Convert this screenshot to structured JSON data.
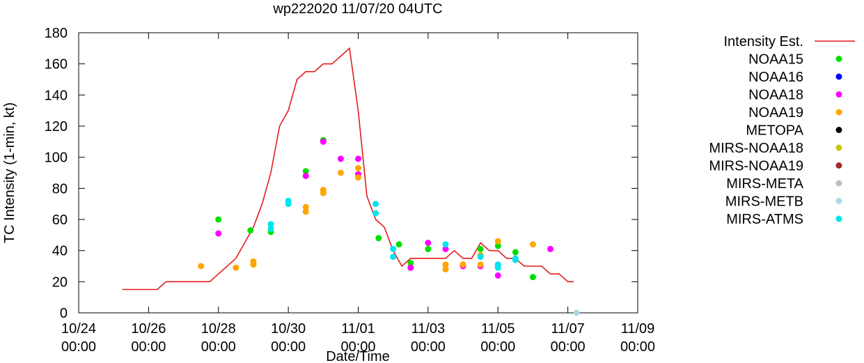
{
  "chart_data": {
    "type": "scatter",
    "title": "wp222020 11/07/20 04UTC",
    "xlabel": "Date/Time",
    "ylabel": "TC Intensity (1-min, kt)",
    "xlim": [
      "2020-10-24T00:00",
      "2020-11-09T00:00"
    ],
    "ylim": [
      0,
      180
    ],
    "yticks": [
      0,
      20,
      40,
      60,
      80,
      100,
      120,
      140,
      160,
      180
    ],
    "xticks": [
      {
        "x": "2020-10-24T00:00",
        "label1": "10/24",
        "label2": "00:00"
      },
      {
        "x": "2020-10-26T00:00",
        "label1": "10/26",
        "label2": "00:00"
      },
      {
        "x": "2020-10-28T00:00",
        "label1": "10/28",
        "label2": "00:00"
      },
      {
        "x": "2020-10-30T00:00",
        "label1": "10/30",
        "label2": "00:00"
      },
      {
        "x": "2020-11-01T00:00",
        "label1": "11/01",
        "label2": "00:00"
      },
      {
        "x": "2020-11-03T00:00",
        "label1": "11/03",
        "label2": "00:00"
      },
      {
        "x": "2020-11-05T00:00",
        "label1": "11/05",
        "label2": "00:00"
      },
      {
        "x": "2020-11-07T00:00",
        "label1": "11/07",
        "label2": "00:00"
      },
      {
        "x": "2020-11-09T00:00",
        "label1": "11/09",
        "label2": "00:00"
      }
    ],
    "grid": false,
    "legend_placement": "right",
    "line": {
      "name": "Intensity Est.",
      "color": "#e41a1c",
      "points": [
        [
          "2020-10-25T06:00",
          15
        ],
        [
          "2020-10-25T12:00",
          15
        ],
        [
          "2020-10-26T00:00",
          15
        ],
        [
          "2020-10-26T06:00",
          15
        ],
        [
          "2020-10-26T12:00",
          20
        ],
        [
          "2020-10-27T00:00",
          20
        ],
        [
          "2020-10-27T12:00",
          20
        ],
        [
          "2020-10-27T18:00",
          20
        ],
        [
          "2020-10-28T00:00",
          25
        ],
        [
          "2020-10-28T12:00",
          35
        ],
        [
          "2020-10-28T18:00",
          45
        ],
        [
          "2020-10-29T00:00",
          55
        ],
        [
          "2020-10-29T06:00",
          70
        ],
        [
          "2020-10-29T12:00",
          90
        ],
        [
          "2020-10-29T18:00",
          120
        ],
        [
          "2020-10-30T00:00",
          130
        ],
        [
          "2020-10-30T06:00",
          150
        ],
        [
          "2020-10-30T12:00",
          155
        ],
        [
          "2020-10-30T18:00",
          155
        ],
        [
          "2020-10-31T00:00",
          160
        ],
        [
          "2020-10-31T06:00",
          160
        ],
        [
          "2020-10-31T12:00",
          165
        ],
        [
          "2020-10-31T18:00",
          170
        ],
        [
          "2020-11-01T00:00",
          130
        ],
        [
          "2020-11-01T06:00",
          75
        ],
        [
          "2020-11-01T12:00",
          60
        ],
        [
          "2020-11-01T18:00",
          55
        ],
        [
          "2020-11-02T00:00",
          40
        ],
        [
          "2020-11-02T06:00",
          30
        ],
        [
          "2020-11-02T12:00",
          35
        ],
        [
          "2020-11-03T00:00",
          35
        ],
        [
          "2020-11-03T12:00",
          35
        ],
        [
          "2020-11-03T18:00",
          40
        ],
        [
          "2020-11-04T00:00",
          35
        ],
        [
          "2020-11-04T06:00",
          35
        ],
        [
          "2020-11-04T12:00",
          45
        ],
        [
          "2020-11-04T18:00",
          40
        ],
        [
          "2020-11-05T00:00",
          40
        ],
        [
          "2020-11-05T06:00",
          35
        ],
        [
          "2020-11-05T12:00",
          35
        ],
        [
          "2020-11-05T18:00",
          30
        ],
        [
          "2020-11-06T00:00",
          30
        ],
        [
          "2020-11-06T06:00",
          30
        ],
        [
          "2020-11-06T12:00",
          25
        ],
        [
          "2020-11-06T18:00",
          25
        ],
        [
          "2020-11-07T00:00",
          20
        ],
        [
          "2020-11-07T04:00",
          20
        ]
      ]
    },
    "series": [
      {
        "name": "NOAA15",
        "color": "#00e000",
        "points": [
          [
            "2020-10-28T00:00",
            60
          ],
          [
            "2020-10-28T22:00",
            53
          ],
          [
            "2020-10-29T12:00",
            52
          ],
          [
            "2020-10-30T12:00",
            91
          ],
          [
            "2020-10-31T00:00",
            111
          ],
          [
            "2020-11-01T14:00",
            48
          ],
          [
            "2020-11-02T04:00",
            44
          ],
          [
            "2020-11-02T12:00",
            32
          ],
          [
            "2020-11-03T00:00",
            41
          ],
          [
            "2020-11-04T00:00",
            31
          ],
          [
            "2020-11-04T12:00",
            41
          ],
          [
            "2020-11-05T00:00",
            43
          ],
          [
            "2020-11-05T12:00",
            39
          ],
          [
            "2020-11-06T00:00",
            23
          ]
        ]
      },
      {
        "name": "NOAA16",
        "color": "#0000ff",
        "points": []
      },
      {
        "name": "NOAA18",
        "color": "#ff00ff",
        "points": [
          [
            "2020-10-28T00:00",
            51
          ],
          [
            "2020-10-30T12:00",
            88
          ],
          [
            "2020-10-31T00:00",
            110
          ],
          [
            "2020-10-31T12:00",
            99
          ],
          [
            "2020-11-01T00:00",
            99
          ],
          [
            "2020-11-01T00:00",
            89
          ],
          [
            "2020-11-02T12:00",
            29
          ],
          [
            "2020-11-03T00:00",
            45
          ],
          [
            "2020-11-03T12:00",
            41
          ],
          [
            "2020-11-04T00:00",
            30
          ],
          [
            "2020-11-04T12:00",
            30
          ],
          [
            "2020-11-05T00:00",
            24
          ],
          [
            "2020-11-06T12:00",
            41
          ]
        ]
      },
      {
        "name": "NOAA19",
        "color": "#ffa500",
        "points": [
          [
            "2020-10-27T12:00",
            30
          ],
          [
            "2020-10-28T12:00",
            29
          ],
          [
            "2020-10-29T00:00",
            33
          ],
          [
            "2020-10-29T00:00",
            31
          ],
          [
            "2020-10-30T12:00",
            68
          ],
          [
            "2020-10-30T12:00",
            65
          ],
          [
            "2020-10-31T00:00",
            79
          ],
          [
            "2020-10-31T00:00",
            77
          ],
          [
            "2020-10-31T12:00",
            90
          ],
          [
            "2020-11-01T00:00",
            93
          ],
          [
            "2020-11-01T00:00",
            87
          ],
          [
            "2020-11-03T12:00",
            31
          ],
          [
            "2020-11-03T12:00",
            28
          ],
          [
            "2020-11-04T00:00",
            31
          ],
          [
            "2020-11-04T12:00",
            37
          ],
          [
            "2020-11-04T12:00",
            31
          ],
          [
            "2020-11-05T00:00",
            46
          ],
          [
            "2020-11-06T00:00",
            44
          ]
        ]
      },
      {
        "name": "METOPA",
        "color": "#000000",
        "points": []
      },
      {
        "name": "MIRS-NOAA18",
        "color": "#c8c800",
        "points": []
      },
      {
        "name": "MIRS-NOAA19",
        "color": "#a52a2a",
        "points": []
      },
      {
        "name": "MIRS-META",
        "color": "#bebebe",
        "points": []
      },
      {
        "name": "MIRS-METB",
        "color": "#add8e6",
        "points": [
          [
            "2020-11-07T06:00",
            0
          ]
        ]
      },
      {
        "name": "MIRS-ATMS",
        "color": "#00e5ee",
        "points": [
          [
            "2020-10-29T12:00",
            57
          ],
          [
            "2020-10-29T12:00",
            54
          ],
          [
            "2020-10-30T00:00",
            72
          ],
          [
            "2020-10-30T00:00",
            70
          ],
          [
            "2020-11-01T12:00",
            70
          ],
          [
            "2020-11-01T12:00",
            64
          ],
          [
            "2020-11-02T00:00",
            41
          ],
          [
            "2020-11-02T00:00",
            36
          ],
          [
            "2020-11-03T12:00",
            44
          ],
          [
            "2020-11-04T12:00",
            36
          ],
          [
            "2020-11-05T00:00",
            31
          ],
          [
            "2020-11-05T00:00",
            29
          ],
          [
            "2020-11-05T12:00",
            35
          ],
          [
            "2020-11-05T12:00",
            34
          ]
        ]
      }
    ]
  }
}
